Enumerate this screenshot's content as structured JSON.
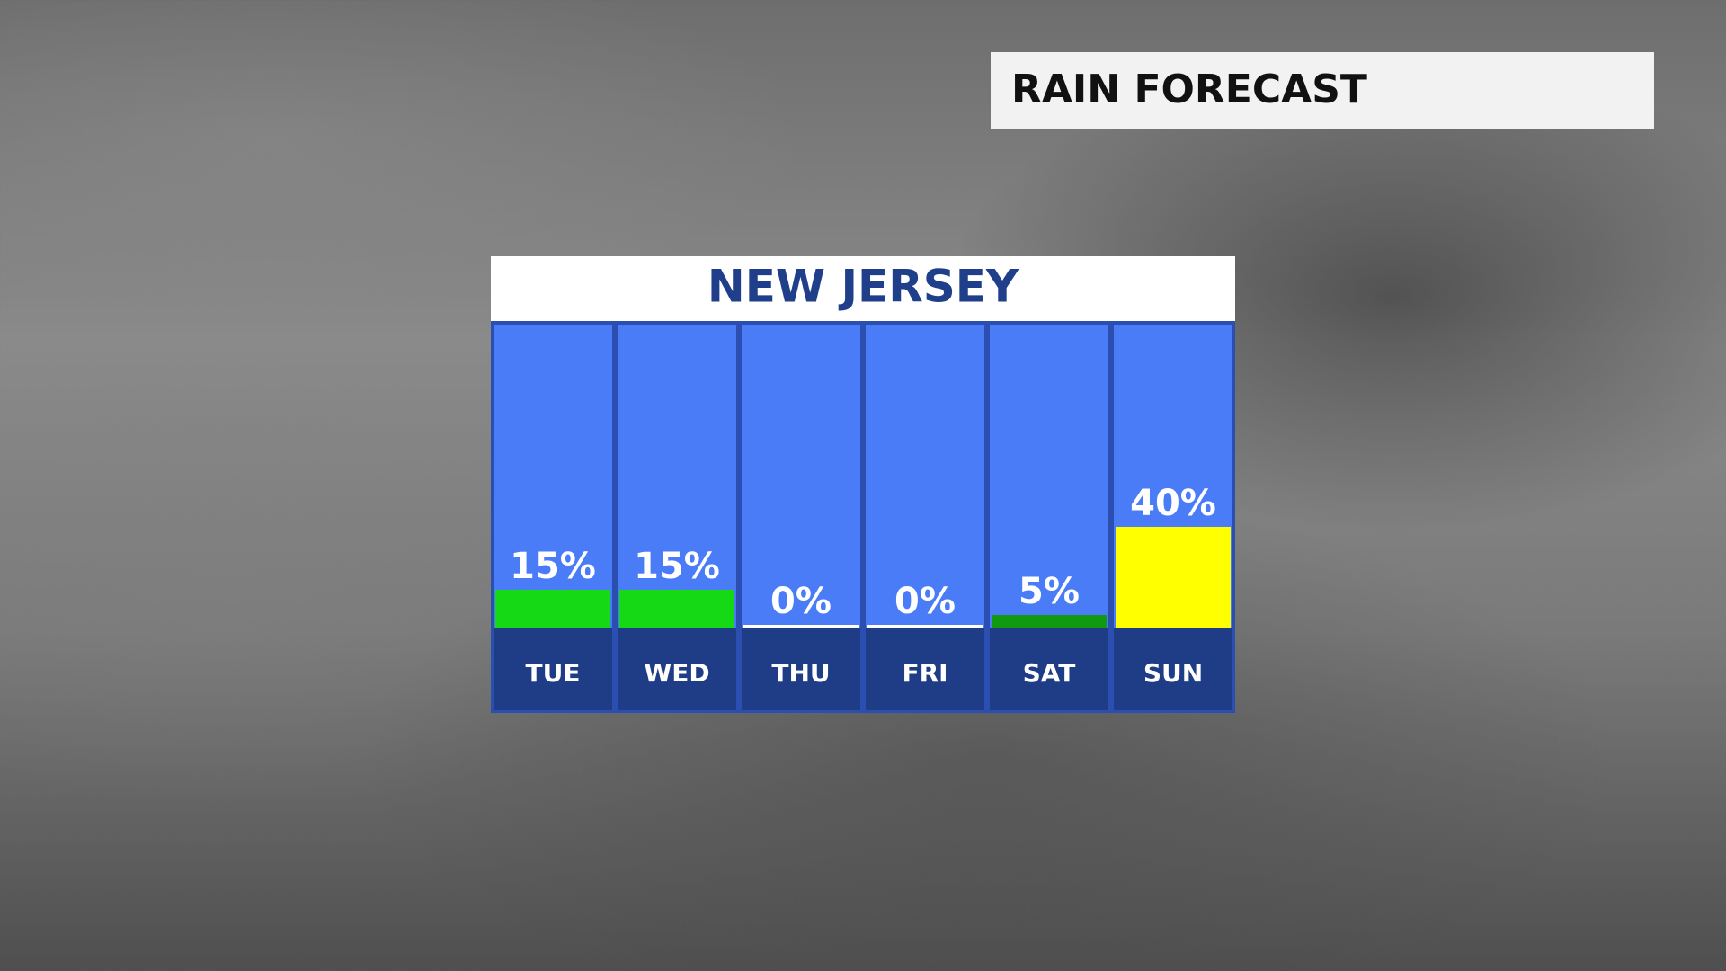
{
  "header": {
    "title": "RAIN FORECAST"
  },
  "chart_data": {
    "type": "bar",
    "title": "NEW JERSEY",
    "categories": [
      "TUE",
      "WED",
      "THU",
      "FRI",
      "SAT",
      "SUN"
    ],
    "values": [
      15,
      15,
      0,
      0,
      5,
      40
    ],
    "value_labels": [
      "15%",
      "15%",
      "0%",
      "0%",
      "5%",
      "40%"
    ],
    "colors": [
      "#14d914",
      "#14d914",
      "#ffffff",
      "#ffffff",
      "#119a11",
      "#ffff00"
    ]
  }
}
